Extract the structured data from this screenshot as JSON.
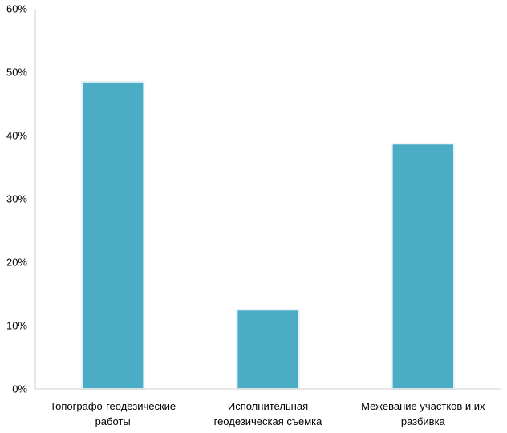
{
  "chart_data": {
    "type": "bar",
    "categories": [
      [
        "Топографо-геодезические",
        "работы"
      ],
      [
        "Исполнительная",
        "геодезическая съемка"
      ],
      [
        "Межевание участков и их",
        "разбивка"
      ]
    ],
    "values": [
      48.5,
      12.5,
      38.7
    ],
    "y_tick_labels": [
      "0%",
      "10%",
      "20%",
      "30%",
      "40%",
      "50%",
      "60%"
    ],
    "ylim": [
      0,
      60
    ],
    "y_tick_step": 10,
    "grid": false,
    "legend": "none",
    "title": "",
    "xlabel": "",
    "ylabel": "",
    "colors": {
      "bar": "#4bacc6",
      "bar_edge": "#e6f2f6",
      "axis": "#d0d0d0",
      "text": "#000000"
    }
  }
}
